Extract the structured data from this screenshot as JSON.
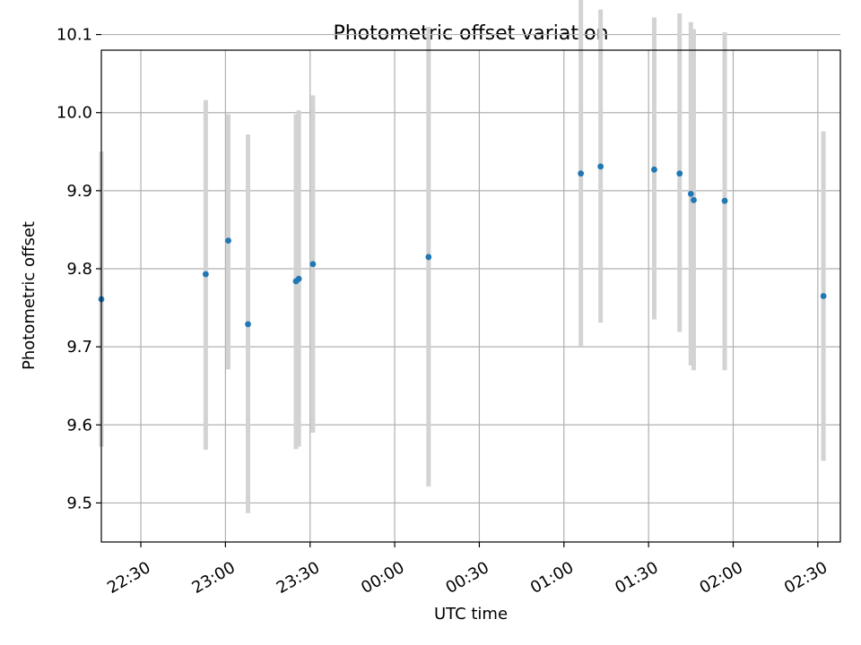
{
  "chart_data": {
    "type": "scatter",
    "title": "Photometric offset variation",
    "xlabel": "UTC time",
    "ylabel": "Photometric offset",
    "grid": true,
    "legend": "none",
    "xlim": [
      "22:16",
      "02:38"
    ],
    "ylim": [
      9.45,
      10.08
    ],
    "xticks": [
      "22:30",
      "23:00",
      "23:30",
      "00:00",
      "00:30",
      "01:00",
      "01:30",
      "02:00",
      "02:30"
    ],
    "yticks": [
      9.5,
      9.6,
      9.7,
      9.8,
      9.9,
      10.0,
      10.1
    ],
    "series": [
      {
        "color": "#1f77b4",
        "errorbar_color": "#d3d3d3",
        "points": [
          {
            "x": "22:16",
            "y": 9.761,
            "low": 9.572,
            "high": 9.95
          },
          {
            "x": "22:53",
            "y": 9.793,
            "low": 9.568,
            "high": 10.016
          },
          {
            "x": "23:01",
            "y": 9.836,
            "low": 9.671,
            "high": 9.998
          },
          {
            "x": "23:08",
            "y": 9.729,
            "low": 9.487,
            "high": 9.972
          },
          {
            "x": "23:25",
            "y": 9.784,
            "low": 9.569,
            "high": 9.998
          },
          {
            "x": "23:26",
            "y": 9.787,
            "low": 9.572,
            "high": 10.003
          },
          {
            "x": "23:31",
            "y": 9.806,
            "low": 9.59,
            "high": 10.022
          },
          {
            "x": "00:12",
            "y": 9.815,
            "low": 9.521,
            "high": 10.11
          },
          {
            "x": "01:06",
            "y": 9.922,
            "low": 9.7,
            "high": 10.148
          },
          {
            "x": "01:13",
            "y": 9.931,
            "low": 9.731,
            "high": 10.132
          },
          {
            "x": "01:32",
            "y": 9.927,
            "low": 9.735,
            "high": 10.122
          },
          {
            "x": "01:41",
            "y": 9.922,
            "low": 9.719,
            "high": 10.127
          },
          {
            "x": "01:45",
            "y": 9.896,
            "low": 9.676,
            "high": 10.116
          },
          {
            "x": "01:46",
            "y": 9.888,
            "low": 9.67,
            "high": 10.107
          },
          {
            "x": "01:57",
            "y": 9.887,
            "low": 9.67,
            "high": 10.103
          },
          {
            "x": "02:32",
            "y": 9.765,
            "low": 9.554,
            "high": 9.976
          }
        ]
      }
    ]
  }
}
